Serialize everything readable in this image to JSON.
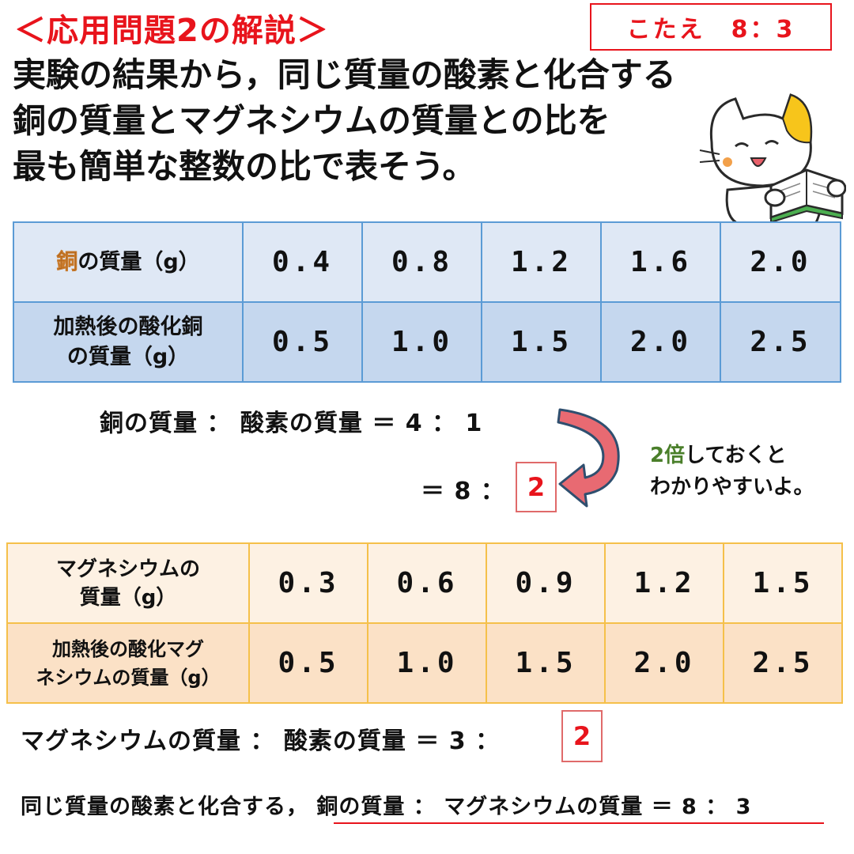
{
  "title": "＜応用問題2の解説＞",
  "answer": "こたえ　8：3",
  "question_lines": [
    "実験の結果から，同じ質量の酸素と化合する",
    "銅の質量とマグネシウムの質量との比を",
    "最も簡単な整数の比で表そう。"
  ],
  "copper_table": {
    "row1_head_mark": "銅",
    "row1_head_rest": "の質量（g）",
    "row1_values": [
      "0.4",
      "0.8",
      "1.2",
      "1.6",
      "2.0"
    ],
    "row2_head_line1": "加熱後の酸化銅",
    "row2_head_line2": "の質量（g）",
    "row2_values": [
      "0.5",
      "1.0",
      "1.5",
      "2.0",
      "2.5"
    ]
  },
  "copper_ratio": {
    "line1": "銅の質量 ： 酸素の質量 ＝ 4 ： 1",
    "line2": "＝ 8 ：",
    "boxed": "2"
  },
  "hint": {
    "green": "2倍",
    "rest1": "しておくと",
    "line2": "わかりやすいよ。"
  },
  "mg_table": {
    "row1_head_line1": "マグネシウムの",
    "row1_head_line2": "質量（g）",
    "row1_values": [
      "0.3",
      "0.6",
      "0.9",
      "1.2",
      "1.5"
    ],
    "row2_head_line1": "加熱後の酸化マグ",
    "row2_head_line2": "ネシウムの質量（g）",
    "row2_values": [
      "0.5",
      "1.0",
      "1.5",
      "2.0",
      "2.5"
    ]
  },
  "mg_ratio": {
    "line": "マグネシウムの質量 ： 酸素の質量 ＝ 3 ：",
    "boxed": "2"
  },
  "conclusion": {
    "prefix": "同じ質量の酸素と化合する，",
    "underlined": "銅の質量 ： マグネシウムの質量 ＝ 8 ： 3"
  },
  "colors": {
    "title_red": "#e8141c",
    "copper_border": "#5b9bd5",
    "mg_border": "#f5c04a",
    "hint_green": "#4a7f2a"
  }
}
